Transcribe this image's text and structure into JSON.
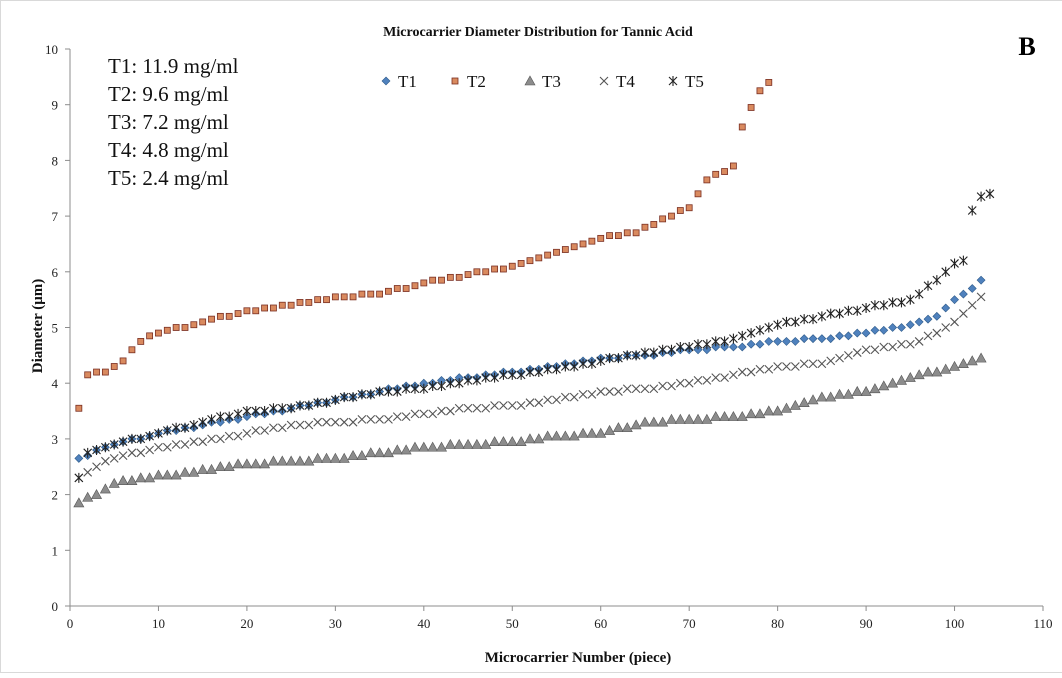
{
  "chart_data": {
    "type": "scatter",
    "title": "Microcarrier Diameter Distribution  for Tannic Acid",
    "panel_label": "B",
    "xlabel": "Microcarrier Number (piece)",
    "ylabel": "Diameter (μm)",
    "xlim": [
      0,
      110
    ],
    "ylim": [
      0,
      10
    ],
    "x_ticks": [
      "0",
      "10",
      "20",
      "30",
      "40",
      "50",
      "60",
      "70",
      "80",
      "90",
      "100",
      "110"
    ],
    "y_ticks": [
      "0",
      "1",
      "2",
      "3",
      "4",
      "5",
      "6",
      "7",
      "8",
      "9",
      "10"
    ],
    "grid": false,
    "legend_position": "top-center",
    "concentration_labels": [
      "T1: 11.9 mg/ml",
      "T2: 9.6 mg/ml",
      "T3: 7.2 mg/ml",
      "T4: 4.8 mg/ml",
      "T5: 2.4 mg/ml"
    ],
    "series": [
      {
        "name": "T1",
        "marker": "diamond",
        "color": "#4f81bd",
        "n": 103,
        "anchors": [
          [
            1,
            2.65
          ],
          [
            5,
            2.9
          ],
          [
            10,
            3.1
          ],
          [
            15,
            3.25
          ],
          [
            20,
            3.4
          ],
          [
            25,
            3.55
          ],
          [
            30,
            3.7
          ],
          [
            35,
            3.85
          ],
          [
            40,
            4.0
          ],
          [
            45,
            4.1
          ],
          [
            50,
            4.2
          ],
          [
            55,
            4.3
          ],
          [
            60,
            4.45
          ],
          [
            65,
            4.5
          ],
          [
            70,
            4.6
          ],
          [
            75,
            4.65
          ],
          [
            80,
            4.75
          ],
          [
            85,
            4.8
          ],
          [
            90,
            4.9
          ],
          [
            95,
            5.05
          ],
          [
            98,
            5.2
          ],
          [
            100,
            5.5
          ],
          [
            102,
            5.7
          ],
          [
            103,
            5.85
          ]
        ]
      },
      {
        "name": "T2",
        "marker": "square",
        "color": "#c0504d",
        "n": 79,
        "anchors": [
          [
            1,
            3.55
          ],
          [
            2,
            4.15
          ],
          [
            4,
            4.2
          ],
          [
            6,
            4.4
          ],
          [
            8,
            4.75
          ],
          [
            10,
            4.9
          ],
          [
            15,
            5.1
          ],
          [
            20,
            5.3
          ],
          [
            25,
            5.4
          ],
          [
            30,
            5.55
          ],
          [
            35,
            5.6
          ],
          [
            40,
            5.8
          ],
          [
            45,
            5.95
          ],
          [
            50,
            6.1
          ],
          [
            55,
            6.35
          ],
          [
            60,
            6.6
          ],
          [
            64,
            6.7
          ],
          [
            67,
            6.95
          ],
          [
            70,
            7.15
          ],
          [
            72,
            7.65
          ],
          [
            75,
            7.9
          ],
          [
            76,
            8.6
          ],
          [
            77,
            8.95
          ],
          [
            78,
            9.25
          ],
          [
            79,
            9.4
          ]
        ]
      },
      {
        "name": "T3",
        "marker": "triangle",
        "color": "#8c8c8c",
        "n": 103,
        "anchors": [
          [
            1,
            1.85
          ],
          [
            3,
            2.0
          ],
          [
            5,
            2.2
          ],
          [
            8,
            2.3
          ],
          [
            12,
            2.35
          ],
          [
            15,
            2.45
          ],
          [
            20,
            2.55
          ],
          [
            25,
            2.6
          ],
          [
            30,
            2.65
          ],
          [
            35,
            2.75
          ],
          [
            40,
            2.85
          ],
          [
            45,
            2.9
          ],
          [
            50,
            2.95
          ],
          [
            55,
            3.05
          ],
          [
            60,
            3.1
          ],
          [
            65,
            3.3
          ],
          [
            70,
            3.35
          ],
          [
            75,
            3.4
          ],
          [
            80,
            3.5
          ],
          [
            85,
            3.75
          ],
          [
            90,
            3.85
          ],
          [
            95,
            4.1
          ],
          [
            100,
            4.3
          ],
          [
            103,
            4.45
          ]
        ]
      },
      {
        "name": "T4",
        "marker": "x",
        "color": "#555555",
        "n": 103,
        "anchors": [
          [
            1,
            2.3
          ],
          [
            3,
            2.5
          ],
          [
            5,
            2.65
          ],
          [
            10,
            2.85
          ],
          [
            15,
            2.95
          ],
          [
            20,
            3.1
          ],
          [
            25,
            3.25
          ],
          [
            30,
            3.3
          ],
          [
            35,
            3.35
          ],
          [
            40,
            3.45
          ],
          [
            45,
            3.55
          ],
          [
            50,
            3.6
          ],
          [
            55,
            3.7
          ],
          [
            60,
            3.85
          ],
          [
            65,
            3.9
          ],
          [
            70,
            4.0
          ],
          [
            75,
            4.15
          ],
          [
            80,
            4.3
          ],
          [
            85,
            4.35
          ],
          [
            90,
            4.6
          ],
          [
            95,
            4.7
          ],
          [
            98,
            4.9
          ],
          [
            100,
            5.1
          ],
          [
            102,
            5.4
          ],
          [
            103,
            5.55
          ]
        ]
      },
      {
        "name": "T5",
        "marker": "star",
        "color": "#222222",
        "n": 104,
        "anchors": [
          [
            1,
            2.3
          ],
          [
            2,
            2.75
          ],
          [
            5,
            2.9
          ],
          [
            10,
            3.1
          ],
          [
            15,
            3.3
          ],
          [
            20,
            3.5
          ],
          [
            25,
            3.55
          ],
          [
            30,
            3.7
          ],
          [
            35,
            3.85
          ],
          [
            40,
            3.9
          ],
          [
            45,
            4.05
          ],
          [
            50,
            4.15
          ],
          [
            55,
            4.25
          ],
          [
            60,
            4.4
          ],
          [
            65,
            4.55
          ],
          [
            70,
            4.65
          ],
          [
            75,
            4.8
          ],
          [
            80,
            5.05
          ],
          [
            85,
            5.2
          ],
          [
            90,
            5.35
          ],
          [
            95,
            5.5
          ],
          [
            98,
            5.85
          ],
          [
            100,
            6.15
          ],
          [
            101,
            6.2
          ],
          [
            102,
            7.1
          ],
          [
            103,
            7.35
          ],
          [
            104,
            7.4
          ]
        ]
      }
    ]
  }
}
